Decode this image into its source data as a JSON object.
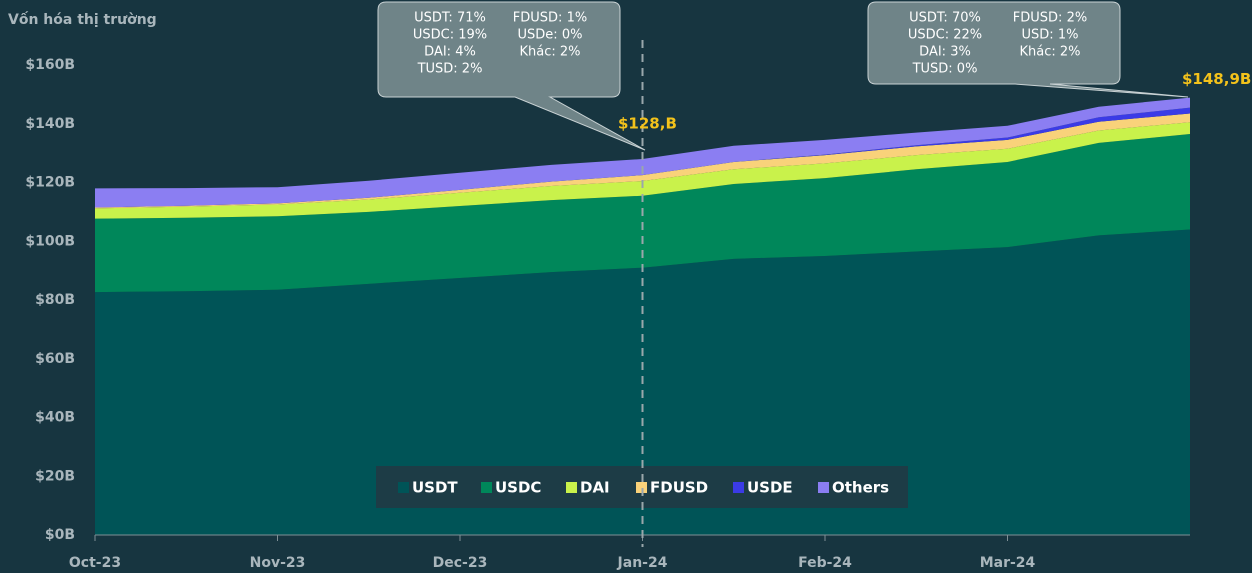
{
  "chart_data": {
    "type": "stacked_area",
    "y_axis_label": "Vốn hóa thị trường",
    "categories": [
      "Oct-23",
      null,
      "Nov-23",
      null,
      "Dec-23",
      null,
      "Jan-24",
      null,
      "Feb-24",
      null,
      "Mar-24",
      null,
      null
    ],
    "series": [
      {
        "name": "USDT",
        "color": "#005457",
        "values": [
          82.7,
          83,
          83.5,
          85.5,
          87.5,
          89.5,
          91,
          94,
          95,
          96.5,
          98,
          102,
          104
        ]
      },
      {
        "name": "USDC",
        "color": "#00875a",
        "values": [
          25,
          25,
          25,
          24.5,
          24.5,
          24.5,
          24.5,
          25.5,
          26.5,
          28,
          29,
          31.5,
          32.5
        ]
      },
      {
        "name": "DAI",
        "color": "#c9f24b",
        "values": [
          3.5,
          3.8,
          4,
          4.2,
          4.5,
          4.8,
          5,
          5,
          5,
          4.8,
          4.5,
          4.2,
          4
        ]
      },
      {
        "name": "FDUSD",
        "color": "#f9d27a",
        "values": [
          0.3,
          0.3,
          0.4,
          0.6,
          1,
          1.5,
          2,
          2.5,
          2.8,
          3,
          3,
          3,
          3
        ]
      },
      {
        "name": "USDE",
        "color": "#3b3be6",
        "values": [
          0,
          0,
          0,
          0,
          0,
          0,
          0,
          0,
          0.2,
          0.4,
          0.8,
          1.5,
          2
        ]
      },
      {
        "name": "Others",
        "color": "#8b7ef2",
        "values": [
          6.5,
          6,
          5.5,
          5.8,
          5.8,
          5.7,
          5.5,
          5.5,
          5,
          4.3,
          4,
          3.6,
          3.4
        ]
      }
    ],
    "ylim": [
      0,
      160
    ],
    "yticks": [
      {
        "value": 0,
        "label": "$0B"
      },
      {
        "value": 20,
        "label": "$20B"
      },
      {
        "value": 40,
        "label": "$40B"
      },
      {
        "value": 60,
        "label": "$60B"
      },
      {
        "value": 80,
        "label": "$80B"
      },
      {
        "value": 100,
        "label": "$100B"
      },
      {
        "value": 120,
        "label": "$120B"
      },
      {
        "value": 140,
        "label": "$140B"
      },
      {
        "value": 160,
        "label": "$160B"
      }
    ],
    "annotations": [
      {
        "x": "Jan-24",
        "label": "$128,B",
        "value": 128,
        "tooltip": [
          [
            "USDT: 71%",
            "FDUSD: 1%"
          ],
          [
            "USDC: 19%",
            "USDe: 0%"
          ],
          [
            "DAI: 4%",
            "Khác: 2%"
          ],
          [
            "TUSD: 2%"
          ]
        ]
      },
      {
        "label": "$148,9B",
        "value": 148.9,
        "tooltip": [
          [
            "USDT: 70%",
            "FDUSD: 2%"
          ],
          [
            "USDC: 22%",
            "USD: 1%"
          ],
          [
            "DAI: 3%",
            "Khác: 2%"
          ],
          [
            "TUSD: 0%"
          ]
        ]
      }
    ],
    "legend": "bottom"
  }
}
